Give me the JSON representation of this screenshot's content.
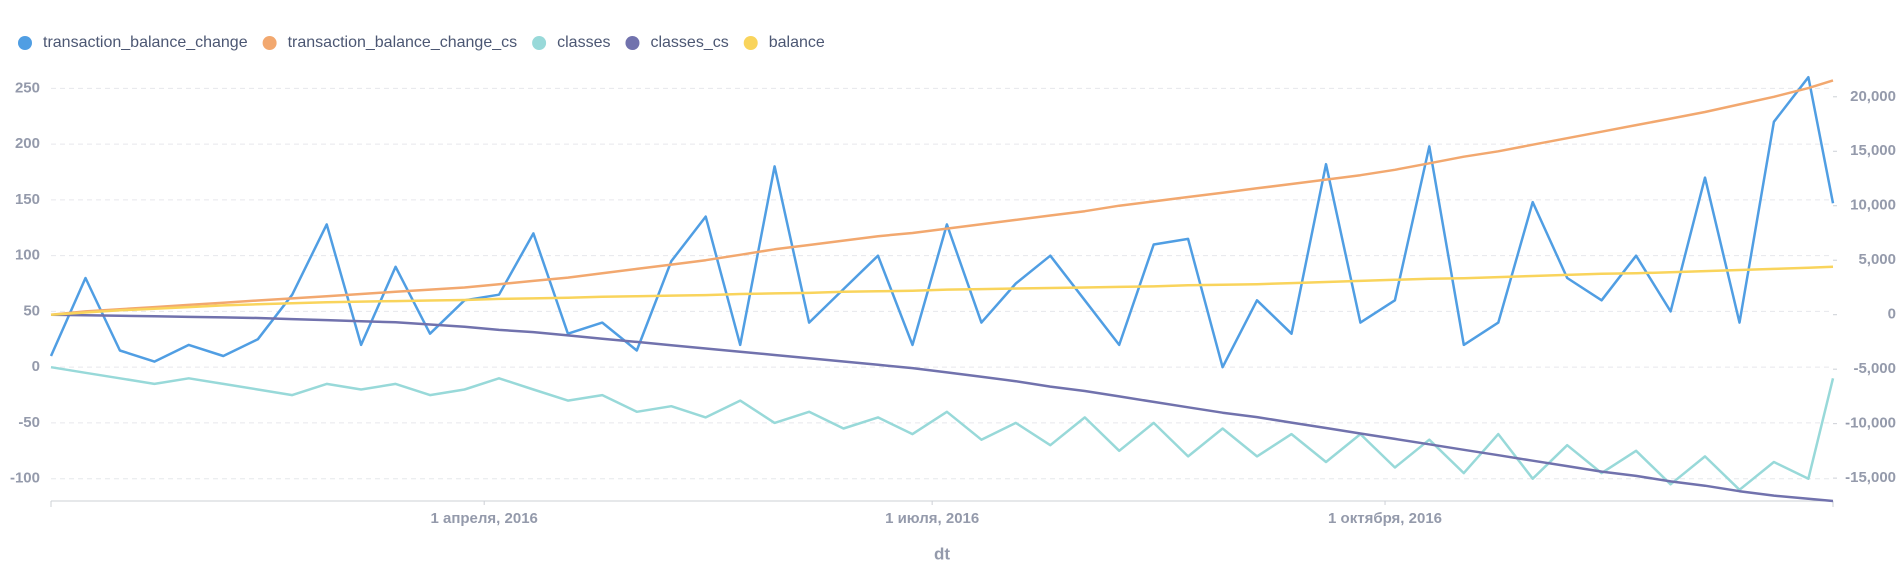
{
  "chart_data": {
    "type": "line",
    "x_label": "dt",
    "x": [
      "2016-01-04",
      "2016-01-11",
      "2016-01-18",
      "2016-01-25",
      "2016-02-01",
      "2016-02-08",
      "2016-02-15",
      "2016-02-22",
      "2016-02-29",
      "2016-03-07",
      "2016-03-14",
      "2016-03-21",
      "2016-03-28",
      "2016-04-04",
      "2016-04-11",
      "2016-04-18",
      "2016-04-25",
      "2016-05-02",
      "2016-05-09",
      "2016-05-16",
      "2016-05-23",
      "2016-05-30",
      "2016-06-06",
      "2016-06-13",
      "2016-06-20",
      "2016-06-27",
      "2016-07-04",
      "2016-07-11",
      "2016-07-18",
      "2016-07-25",
      "2016-08-01",
      "2016-08-08",
      "2016-08-15",
      "2016-08-22",
      "2016-08-29",
      "2016-09-05",
      "2016-09-12",
      "2016-09-19",
      "2016-09-26",
      "2016-10-03",
      "2016-10-10",
      "2016-10-17",
      "2016-10-24",
      "2016-10-31",
      "2016-11-07",
      "2016-11-14",
      "2016-11-21",
      "2016-11-28",
      "2016-12-05",
      "2016-12-12",
      "2016-12-19",
      "2016-12-26",
      "2016-12-31"
    ],
    "xlim": [
      "2016-01-04",
      "2016-12-31"
    ],
    "xticks": [
      {
        "value": "2016-04-01",
        "label": "1 апреля, 2016"
      },
      {
        "value": "2016-07-01",
        "label": "1 июля, 2016"
      },
      {
        "value": "2016-10-01",
        "label": "1 октября, 2016"
      }
    ],
    "ylim": [
      -120,
      262
    ],
    "yticks": [
      -100,
      -50,
      0,
      50,
      100,
      150,
      200,
      250
    ],
    "y2lim": [
      -17100,
      22000
    ],
    "y2ticks": [
      {
        "value": -15000,
        "label": "-15,000"
      },
      {
        "value": -10000,
        "label": "-10,000"
      },
      {
        "value": -5000,
        "label": "-5,000"
      },
      0,
      {
        "value": 5000,
        "label": "5,000"
      },
      {
        "value": 10000,
        "label": "10,000"
      },
      {
        "value": 15000,
        "label": "15,000"
      },
      {
        "value": 20000,
        "label": "20,000"
      }
    ],
    "grid": true,
    "legend": "top-left",
    "series": [
      {
        "name": "transaction_balance_change",
        "color": "#509ee3",
        "values": [
          10,
          80,
          15,
          5,
          20,
          10,
          25,
          65,
          128,
          20,
          90,
          30,
          60,
          65,
          120,
          30,
          40,
          15,
          95,
          135,
          20,
          180,
          40,
          70,
          100,
          20,
          128,
          40,
          75,
          100,
          60,
          20,
          110,
          115,
          0,
          60,
          30,
          182,
          40,
          60,
          198,
          20,
          40,
          148,
          80,
          60,
          100,
          50,
          170,
          40,
          220,
          260,
          147
        ]
      },
      {
        "name": "transaction_balance_change_cs",
        "color": "#f2a86f",
        "axis": "y2",
        "values": [
          0,
          300,
          500,
          700,
          900,
          1100,
          1300,
          1500,
          1700,
          1900,
          2100,
          2300,
          2500,
          2800,
          3100,
          3400,
          3800,
          4200,
          4600,
          5000,
          5500,
          6000,
          6400,
          6800,
          7200,
          7500,
          7900,
          8300,
          8700,
          9100,
          9500,
          10000,
          10400,
          10800,
          11200,
          11600,
          12000,
          12400,
          12800,
          13300,
          13900,
          14500,
          15000,
          15600,
          16200,
          16800,
          17400,
          18000,
          18600,
          19300,
          20000,
          20800,
          21500
        ]
      },
      {
        "name": "classes",
        "color": "#98d9d9",
        "values": [
          0,
          -5,
          -10,
          -15,
          -10,
          -15,
          -20,
          -25,
          -15,
          -20,
          -15,
          -25,
          -20,
          -10,
          -20,
          -30,
          -25,
          -40,
          -35,
          -45,
          -30,
          -50,
          -40,
          -55,
          -45,
          -60,
          -40,
          -65,
          -50,
          -70,
          -45,
          -75,
          -50,
          -80,
          -55,
          -80,
          -60,
          -85,
          -60,
          -90,
          -65,
          -95,
          -60,
          -100,
          -70,
          -95,
          -75,
          -105,
          -80,
          -110,
          -85,
          -100,
          -10
        ]
      },
      {
        "name": "classes_cs",
        "color": "#7172ad",
        "axis": "y2",
        "values": [
          0,
          -50,
          -100,
          -150,
          -200,
          -250,
          -300,
          -400,
          -500,
          -600,
          -700,
          -900,
          -1100,
          -1400,
          -1600,
          -1900,
          -2200,
          -2500,
          -2800,
          -3100,
          -3400,
          -3700,
          -4000,
          -4300,
          -4600,
          -4900,
          -5300,
          -5700,
          -6100,
          -6600,
          -7000,
          -7500,
          -8000,
          -8500,
          -9000,
          -9400,
          -9900,
          -10400,
          -10900,
          -11400,
          -11900,
          -12400,
          -12900,
          -13400,
          -13900,
          -14400,
          -14800,
          -15300,
          -15700,
          -16200,
          -16600,
          -16900,
          -17100
        ]
      },
      {
        "name": "balance",
        "color": "#f9d45c",
        "axis": "y2",
        "values": [
          0,
          200,
          400,
          550,
          700,
          850,
          950,
          1050,
          1150,
          1200,
          1250,
          1300,
          1350,
          1450,
          1500,
          1550,
          1650,
          1700,
          1750,
          1800,
          1900,
          1950,
          2000,
          2100,
          2150,
          2200,
          2300,
          2350,
          2400,
          2450,
          2500,
          2550,
          2600,
          2700,
          2750,
          2800,
          2900,
          3000,
          3100,
          3200,
          3300,
          3350,
          3450,
          3550,
          3650,
          3750,
          3800,
          3900,
          4000,
          4100,
          4200,
          4300,
          4400
        ]
      }
    ]
  }
}
